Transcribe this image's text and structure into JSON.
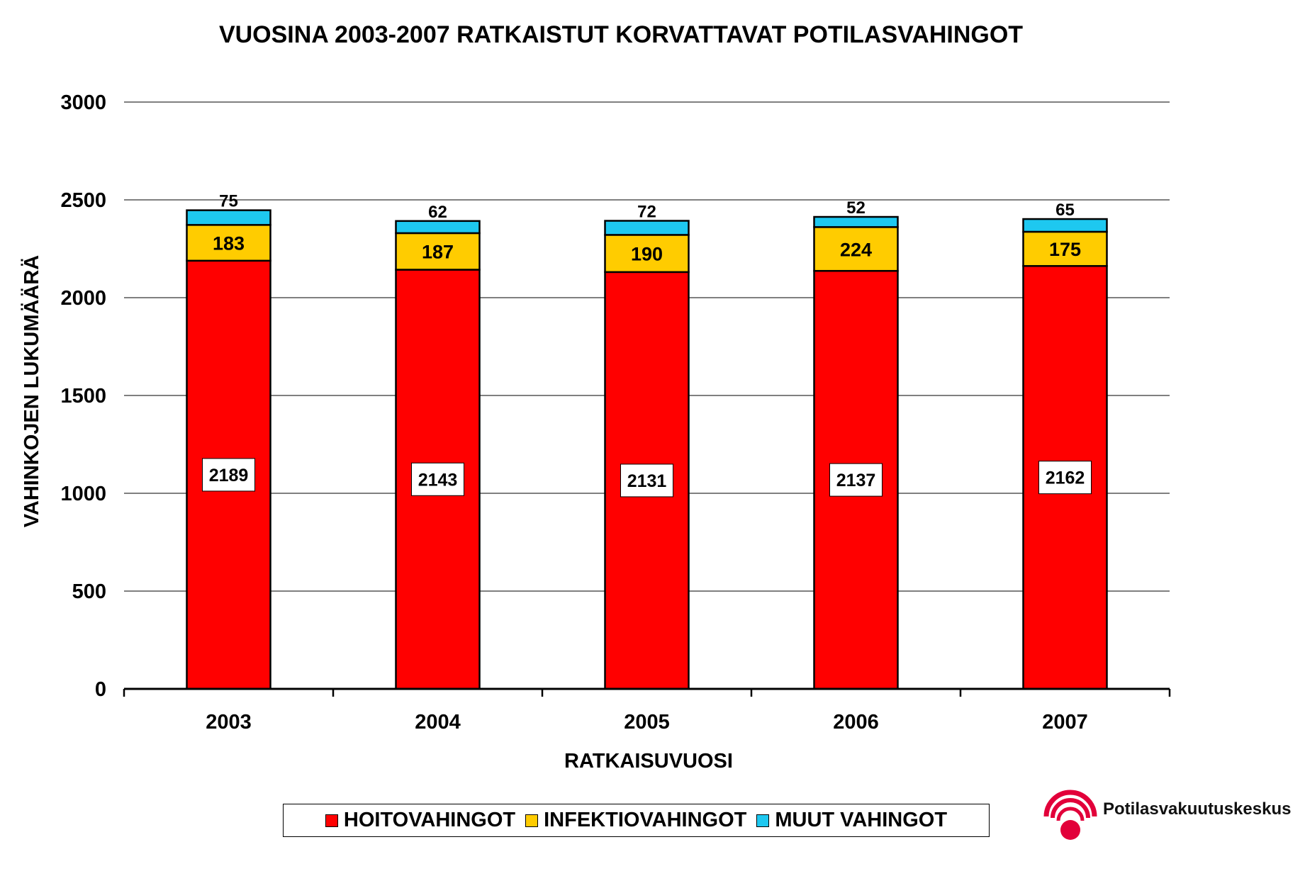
{
  "chart_data": {
    "type": "bar",
    "stacked": true,
    "title": "VUOSINA 2003-2007 RATKAISTUT KORVATTAVAT POTILASVAHINGOT",
    "xlabel": "RATKAISUVUOSI",
    "ylabel": "VAHINKOJEN LUKUMÄÄRÄ",
    "categories": [
      "2003",
      "2004",
      "2005",
      "2006",
      "2007"
    ],
    "ylim": [
      0,
      3000
    ],
    "yticks": [
      0,
      500,
      1000,
      1500,
      2000,
      2500,
      3000
    ],
    "grid": true,
    "legend_position": "bottom",
    "series": [
      {
        "name": "HOITOVAHINGOT",
        "color": "#ff0000",
        "values": [
          2189,
          2143,
          2131,
          2137,
          2162
        ]
      },
      {
        "name": "INFEKTIOVAHINGOT",
        "color": "#ffcc00",
        "values": [
          183,
          187,
          190,
          224,
          175
        ]
      },
      {
        "name": "MUUT VAHINGOT",
        "color": "#1ec8f0",
        "values": [
          75,
          62,
          72,
          52,
          65
        ]
      }
    ]
  },
  "logo": {
    "text": "Potilasvakuutuskeskus",
    "color": "#e2003a"
  }
}
